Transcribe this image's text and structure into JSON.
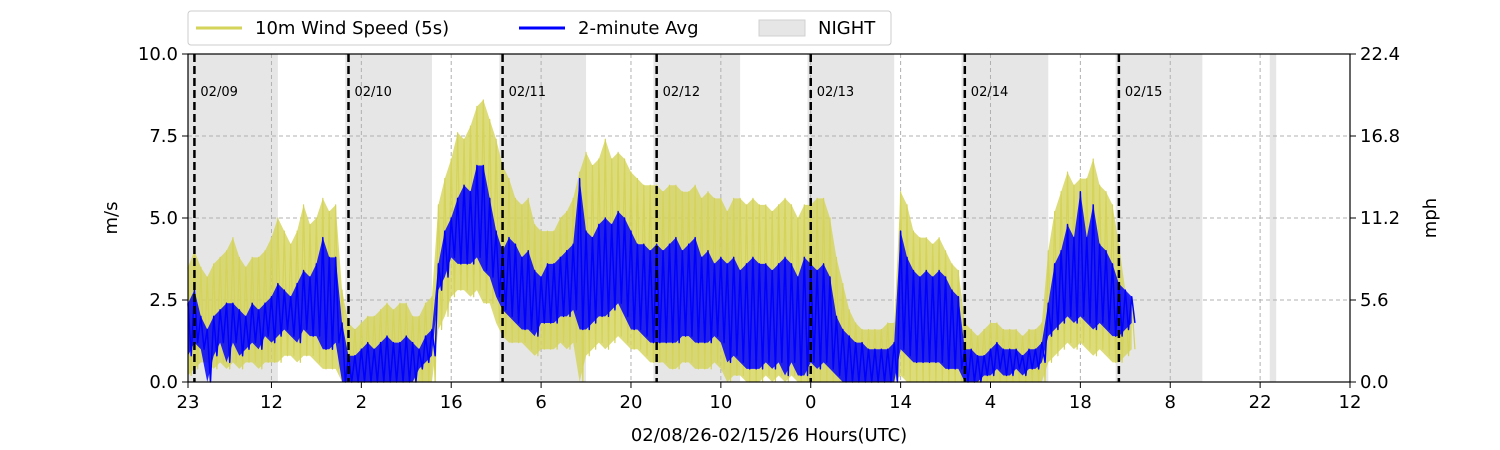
{
  "chart_data": {
    "type": "line",
    "title": "",
    "xlabel": "02/08/26-02/15/26  Hours(UTC)",
    "ylabel": "m/s",
    "ylabel_right": "mph",
    "x_range_hours": [
      0,
      181
    ],
    "ylim": [
      0.0,
      10.0
    ],
    "ylim_right": [
      0.0,
      22.4
    ],
    "x_ticks": [
      {
        "x": 0,
        "label": "23"
      },
      {
        "x": 13,
        "label": "12"
      },
      {
        "x": 27,
        "label": "2"
      },
      {
        "x": 41,
        "label": "16"
      },
      {
        "x": 55,
        "label": "6"
      },
      {
        "x": 69,
        "label": "20"
      },
      {
        "x": 83,
        "label": "10"
      },
      {
        "x": 97,
        "label": "0"
      },
      {
        "x": 111,
        "label": "14"
      },
      {
        "x": 125,
        "label": "4"
      },
      {
        "x": 139,
        "label": "18"
      },
      {
        "x": 153,
        "label": "8"
      },
      {
        "x": 167,
        "label": "22"
      },
      {
        "x": 181,
        "label": "12"
      }
    ],
    "y_ticks": [
      "0.0",
      "2.5",
      "5.0",
      "7.5",
      "10.0"
    ],
    "y_tick_values": [
      0,
      2.5,
      5,
      7.5,
      10
    ],
    "y_ticks_right": [
      "0.0",
      "5.6",
      "11.2",
      "16.8",
      "22.4"
    ],
    "grid": true,
    "legend_position": "top-left",
    "day_markers": [
      {
        "x": 1,
        "label": "02/09"
      },
      {
        "x": 25,
        "label": "02/10"
      },
      {
        "x": 49,
        "label": "02/11"
      },
      {
        "x": 73,
        "label": "02/12"
      },
      {
        "x": 97,
        "label": "02/13"
      },
      {
        "x": 121,
        "label": "02/14"
      },
      {
        "x": 145,
        "label": "02/15"
      }
    ],
    "night_bands": [
      [
        0,
        14
      ],
      [
        24.5,
        38
      ],
      [
        48.5,
        62
      ],
      [
        72.5,
        86
      ],
      [
        96.5,
        110
      ],
      [
        120.5,
        134
      ],
      [
        144.5,
        158
      ],
      [
        168.5,
        169.5
      ]
    ],
    "series": [
      {
        "name": "10m Wind Speed (5s)",
        "color": "#d4d35a",
        "x": [
          0,
          1,
          2,
          3,
          4,
          5,
          6,
          7,
          8,
          9,
          10,
          11,
          12,
          13,
          14,
          15,
          16,
          17,
          18,
          19,
          20,
          21,
          22,
          23,
          24,
          25,
          26,
          27,
          28,
          29,
          30,
          31,
          32,
          33,
          34,
          35,
          36,
          37,
          38,
          39,
          40,
          41,
          42,
          43,
          44,
          45,
          46,
          47,
          48,
          49,
          50,
          51,
          52,
          53,
          54,
          55,
          56,
          57,
          58,
          59,
          60,
          61,
          62,
          63,
          64,
          65,
          66,
          67,
          68,
          69,
          70,
          71,
          72,
          73,
          74,
          75,
          76,
          77,
          78,
          79,
          80,
          81,
          82,
          83,
          84,
          85,
          86,
          87,
          88,
          89,
          90,
          91,
          92,
          93,
          94,
          95,
          96,
          97,
          98,
          99,
          100,
          101,
          102,
          103,
          104,
          105,
          106,
          107,
          108,
          109,
          110,
          111,
          112,
          113,
          114,
          115,
          116,
          117,
          118,
          119,
          120,
          121,
          122,
          123,
          124,
          125,
          126,
          127,
          128,
          129,
          130,
          131,
          132,
          133,
          134,
          135,
          136,
          137,
          138,
          139,
          140,
          141,
          142,
          143,
          144,
          145,
          146,
          147
        ],
        "y_high": [
          3.5,
          4.0,
          3.5,
          3.2,
          3.6,
          3.8,
          4.0,
          4.4,
          3.8,
          3.5,
          3.8,
          3.8,
          4.0,
          4.4,
          5.0,
          4.6,
          4.2,
          4.6,
          5.4,
          4.8,
          5.0,
          5.6,
          5.2,
          5.4,
          2.8,
          1.8,
          1.6,
          1.8,
          2.0,
          2.0,
          2.2,
          2.4,
          2.2,
          2.4,
          2.4,
          2.0,
          2.0,
          2.4,
          2.6,
          5.4,
          6.2,
          6.8,
          7.6,
          7.4,
          7.8,
          8.4,
          8.6,
          8.0,
          7.4,
          6.6,
          6.2,
          5.6,
          5.4,
          5.6,
          4.8,
          4.6,
          4.6,
          4.6,
          5.0,
          5.2,
          5.6,
          6.4,
          7.0,
          6.6,
          6.8,
          7.4,
          6.8,
          7.0,
          6.8,
          6.4,
          6.2,
          6.0,
          6.0,
          6.0,
          5.8,
          6.0,
          6.0,
          5.8,
          5.8,
          6.0,
          5.6,
          5.8,
          5.6,
          5.6,
          5.2,
          5.6,
          5.6,
          5.4,
          5.6,
          5.4,
          5.4,
          5.2,
          5.4,
          5.6,
          5.4,
          5.0,
          5.4,
          5.4,
          5.6,
          5.6,
          5.0,
          3.8,
          3.0,
          2.2,
          1.8,
          1.6,
          1.6,
          1.6,
          1.6,
          1.8,
          1.8,
          5.8,
          5.4,
          4.6,
          4.4,
          4.4,
          4.2,
          4.4,
          4.0,
          3.6,
          3.4,
          1.8,
          1.6,
          1.4,
          1.6,
          1.8,
          1.8,
          1.6,
          1.6,
          1.6,
          1.4,
          1.6,
          1.6,
          1.8,
          4.0,
          5.2,
          5.8,
          6.4,
          6.0,
          6.2,
          6.2,
          6.8,
          6.0,
          5.8,
          5.4,
          4.2,
          2.8,
          2.4
        ],
        "y_low": [
          0.2,
          0.4,
          0.6,
          0.6,
          0.4,
          0.6,
          0.4,
          0.6,
          0.4,
          0.6,
          0.6,
          0.4,
          0.6,
          0.6,
          0.6,
          0.8,
          0.8,
          0.6,
          0.8,
          0.8,
          0.6,
          0.4,
          0.4,
          0.4,
          0.0,
          0.0,
          0.0,
          0.0,
          0.0,
          0.0,
          0.0,
          0.0,
          0.0,
          0.0,
          0.0,
          0.0,
          0.0,
          0.0,
          0.0,
          1.6,
          2.0,
          2.6,
          2.8,
          2.8,
          2.6,
          2.8,
          2.4,
          2.4,
          1.8,
          1.4,
          1.2,
          1.2,
          1.2,
          1.0,
          0.8,
          1.0,
          1.0,
          1.0,
          1.2,
          1.0,
          1.2,
          0.0,
          0.8,
          1.0,
          1.2,
          1.0,
          1.2,
          1.4,
          1.2,
          1.0,
          1.0,
          0.8,
          0.6,
          0.6,
          0.6,
          0.4,
          0.4,
          0.6,
          0.6,
          0.4,
          0.4,
          0.4,
          0.6,
          0.4,
          0.0,
          0.2,
          0.2,
          0.0,
          0.0,
          0.0,
          0.2,
          0.0,
          0.2,
          0.0,
          0.2,
          0.0,
          0.0,
          0.0,
          0.0,
          0.0,
          0.0,
          0.0,
          0.0,
          0.0,
          0.0,
          0.0,
          0.0,
          0.0,
          0.0,
          0.0,
          0.0,
          0.2,
          0.0,
          0.0,
          0.0,
          0.0,
          0.0,
          0.0,
          0.0,
          0.0,
          0.0,
          0.0,
          0.0,
          0.0,
          0.0,
          0.0,
          0.0,
          0.0,
          0.0,
          0.0,
          0.0,
          0.0,
          0.0,
          0.0,
          0.6,
          0.8,
          1.0,
          1.2,
          1.0,
          1.2,
          1.0,
          0.8,
          1.0,
          0.8,
          0.6,
          0.6,
          0.8,
          1.0
        ]
      },
      {
        "name": "2-minute Avg",
        "color": "#0000ff",
        "x": [
          0,
          1,
          2,
          3,
          4,
          5,
          6,
          7,
          8,
          9,
          10,
          11,
          12,
          13,
          14,
          15,
          16,
          17,
          18,
          19,
          20,
          21,
          22,
          23,
          24,
          25,
          26,
          27,
          28,
          29,
          30,
          31,
          32,
          33,
          34,
          35,
          36,
          37,
          38,
          39,
          40,
          41,
          42,
          43,
          44,
          45,
          46,
          47,
          48,
          49,
          50,
          51,
          52,
          53,
          54,
          55,
          56,
          57,
          58,
          59,
          60,
          61,
          62,
          63,
          64,
          65,
          66,
          67,
          68,
          69,
          70,
          71,
          72,
          73,
          74,
          75,
          76,
          77,
          78,
          79,
          80,
          81,
          82,
          83,
          84,
          85,
          86,
          87,
          88,
          89,
          90,
          91,
          92,
          93,
          94,
          95,
          96,
          97,
          98,
          99,
          100,
          101,
          102,
          103,
          104,
          105,
          106,
          107,
          108,
          109,
          110,
          111,
          112,
          113,
          114,
          115,
          116,
          117,
          118,
          119,
          120,
          121,
          122,
          123,
          124,
          125,
          126,
          127,
          128,
          129,
          130,
          131,
          132,
          133,
          134,
          135,
          136,
          137,
          138,
          139,
          140,
          141,
          142,
          143,
          144,
          145,
          146,
          147
        ],
        "y_high": [
          2.4,
          2.8,
          2.0,
          1.6,
          2.0,
          2.2,
          2.4,
          2.4,
          2.2,
          2.0,
          2.4,
          2.2,
          2.4,
          2.6,
          3.0,
          2.8,
          2.6,
          3.0,
          3.4,
          3.2,
          3.6,
          4.4,
          3.8,
          3.8,
          1.8,
          0.8,
          0.8,
          1.0,
          1.2,
          1.0,
          1.2,
          1.4,
          1.2,
          1.2,
          1.4,
          1.2,
          1.0,
          1.4,
          1.6,
          3.6,
          4.6,
          5.0,
          5.6,
          6.0,
          5.8,
          6.6,
          6.6,
          5.6,
          4.6,
          4.0,
          4.4,
          4.2,
          3.8,
          4.0,
          3.4,
          3.2,
          3.6,
          3.6,
          3.8,
          4.0,
          4.2,
          6.2,
          4.6,
          4.4,
          4.8,
          5.0,
          4.8,
          5.2,
          5.0,
          4.6,
          4.2,
          4.2,
          4.0,
          4.2,
          4.0,
          4.2,
          4.4,
          4.0,
          4.2,
          4.4,
          3.8,
          4.0,
          3.6,
          3.8,
          3.6,
          3.8,
          3.4,
          3.6,
          3.8,
          3.6,
          3.6,
          3.4,
          3.6,
          3.8,
          3.6,
          3.2,
          3.8,
          3.6,
          3.4,
          3.6,
          3.2,
          2.0,
          1.6,
          1.4,
          1.2,
          1.2,
          1.0,
          1.0,
          1.0,
          1.0,
          1.2,
          4.6,
          3.8,
          3.4,
          3.2,
          3.4,
          3.2,
          3.4,
          3.2,
          2.8,
          2.6,
          1.0,
          1.0,
          0.8,
          0.8,
          1.0,
          1.2,
          1.0,
          1.0,
          1.0,
          0.8,
          1.0,
          1.0,
          1.2,
          2.4,
          3.6,
          4.0,
          4.8,
          4.4,
          5.8,
          4.4,
          5.4,
          4.2,
          4.0,
          3.6,
          3.0,
          2.8,
          2.6
        ],
        "y_low": [
          0.8,
          1.2,
          1.0,
          0.0,
          0.8,
          1.2,
          0.6,
          1.2,
          0.8,
          1.0,
          1.2,
          1.0,
          1.4,
          1.2,
          1.4,
          1.6,
          1.4,
          1.2,
          1.6,
          1.4,
          1.4,
          1.0,
          1.0,
          1.2,
          0.0,
          0.0,
          0.0,
          0.0,
          0.0,
          0.0,
          0.0,
          0.0,
          0.0,
          0.0,
          0.0,
          0.0,
          0.4,
          0.6,
          0.8,
          2.8,
          3.2,
          3.8,
          3.6,
          3.6,
          3.6,
          3.8,
          3.4,
          3.2,
          2.6,
          2.2,
          2.0,
          1.8,
          1.6,
          1.6,
          1.4,
          1.8,
          1.8,
          1.8,
          2.0,
          2.0,
          2.2,
          1.6,
          1.6,
          1.8,
          2.0,
          2.0,
          2.2,
          2.4,
          2.0,
          1.6,
          1.6,
          1.4,
          1.2,
          1.2,
          1.2,
          1.2,
          1.2,
          1.4,
          1.4,
          1.2,
          1.2,
          1.2,
          1.4,
          1.2,
          0.6,
          0.8,
          0.6,
          0.4,
          0.4,
          0.4,
          0.6,
          0.4,
          0.6,
          0.2,
          0.6,
          0.2,
          0.2,
          0.6,
          0.4,
          0.6,
          0.4,
          0.2,
          0.0,
          0.0,
          0.0,
          0.0,
          0.0,
          0.0,
          0.0,
          0.0,
          0.0,
          1.0,
          0.8,
          0.6,
          0.6,
          0.6,
          0.6,
          0.6,
          0.4,
          0.4,
          0.4,
          0.0,
          0.0,
          0.0,
          0.2,
          0.2,
          0.4,
          0.2,
          0.2,
          0.4,
          0.2,
          0.4,
          0.4,
          0.6,
          1.4,
          1.6,
          1.8,
          2.0,
          1.8,
          2.0,
          1.8,
          1.6,
          1.8,
          1.6,
          1.4,
          1.4,
          1.6,
          1.8
        ]
      }
    ],
    "legend": [
      {
        "label": "10m Wind Speed (5s)",
        "color": "#d4d35a",
        "kind": "line"
      },
      {
        "label": "2-minute Avg",
        "color": "#0000ff",
        "kind": "line"
      },
      {
        "label": "NIGHT",
        "color": "#e6e6e6",
        "kind": "patch"
      }
    ]
  }
}
